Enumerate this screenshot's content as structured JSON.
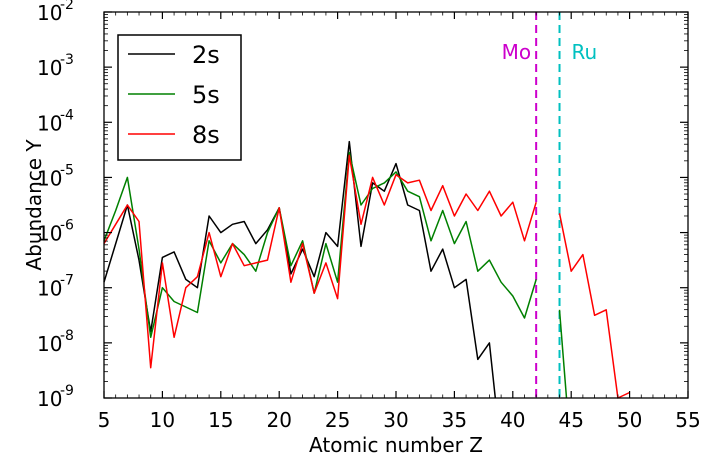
{
  "chart_data": {
    "type": "line",
    "title": "",
    "xlabel": "Atomic number Z",
    "ylabel": "Abundance Y",
    "xlim": [
      5,
      55
    ],
    "ylim_log10": [
      -9,
      -2
    ],
    "yscale": "log",
    "x_ticks": [
      5,
      10,
      15,
      20,
      25,
      30,
      35,
      40,
      45,
      50,
      55
    ],
    "y_ticks": [
      {
        "base": "10",
        "exp": "-9",
        "log10": -9
      },
      {
        "base": "10",
        "exp": "-8",
        "log10": -8
      },
      {
        "base": "10",
        "exp": "-7",
        "log10": -7
      },
      {
        "base": "10",
        "exp": "-6",
        "log10": -6
      },
      {
        "base": "10",
        "exp": "-5",
        "log10": -5
      },
      {
        "base": "10",
        "exp": "-4",
        "log10": -4
      },
      {
        "base": "10",
        "exp": "-3",
        "log10": -3
      },
      {
        "base": "10",
        "exp": "-2",
        "log10": -2
      }
    ],
    "legend_position": "top-left",
    "series": [
      {
        "name": "2s",
        "color": "#000000",
        "segments": [
          [
            [
              5,
              -6.9
            ],
            [
              6,
              -6.2
            ],
            [
              7,
              -5.5
            ],
            [
              8,
              -6.5
            ],
            [
              9,
              -7.8
            ],
            [
              10,
              -6.45
            ],
            [
              11,
              -6.35
            ],
            [
              12,
              -6.85
            ],
            [
              13,
              -7.0
            ],
            [
              14,
              -5.7
            ],
            [
              15,
              -6.0
            ],
            [
              16,
              -5.85
            ],
            [
              17,
              -5.8
            ],
            [
              18,
              -6.2
            ],
            [
              19,
              -5.95
            ],
            [
              20,
              -5.55
            ],
            [
              21,
              -6.75
            ],
            [
              22,
              -6.3
            ],
            [
              23,
              -6.8
            ],
            [
              24,
              -6.0
            ],
            [
              25,
              -6.25
            ],
            [
              26,
              -4.35
            ],
            [
              27,
              -6.25
            ],
            [
              28,
              -5.1
            ],
            [
              29,
              -5.25
            ],
            [
              30,
              -4.75
            ],
            [
              31,
              -5.5
            ],
            [
              32,
              -5.6
            ],
            [
              33,
              -6.7
            ],
            [
              34,
              -6.3
            ],
            [
              35,
              -7.0
            ],
            [
              36,
              -6.85
            ],
            [
              37,
              -8.3
            ],
            [
              38,
              -8.0
            ],
            [
              38.5,
              -9.0
            ]
          ]
        ]
      },
      {
        "name": "5s",
        "color": "#008000",
        "segments": [
          [
            [
              5,
              -6.15
            ],
            [
              6,
              -5.6
            ],
            [
              7,
              -5.0
            ],
            [
              8,
              -6.3
            ],
            [
              9,
              -7.9
            ],
            [
              10,
              -7.0
            ],
            [
              11,
              -7.25
            ],
            [
              12,
              -7.35
            ],
            [
              13,
              -7.45
            ],
            [
              14,
              -6.15
            ],
            [
              15,
              -6.55
            ],
            [
              16,
              -6.2
            ],
            [
              17,
              -6.4
            ],
            [
              18,
              -6.7
            ],
            [
              19,
              -6.0
            ],
            [
              20,
              -5.55
            ],
            [
              21,
              -6.6
            ],
            [
              22,
              -6.15
            ],
            [
              23,
              -7.1
            ],
            [
              24,
              -6.2
            ],
            [
              25,
              -6.9
            ],
            [
              26,
              -4.55
            ],
            [
              27,
              -5.5
            ],
            [
              28,
              -5.2
            ],
            [
              29,
              -5.1
            ],
            [
              30,
              -4.9
            ],
            [
              31,
              -5.25
            ],
            [
              32,
              -5.35
            ],
            [
              33,
              -6.15
            ],
            [
              34,
              -5.6
            ],
            [
              35,
              -6.2
            ],
            [
              36,
              -5.8
            ],
            [
              37,
              -6.7
            ],
            [
              38,
              -6.5
            ],
            [
              39,
              -6.9
            ],
            [
              40,
              -7.15
            ],
            [
              41,
              -7.55
            ],
            [
              42,
              -6.85
            ]
          ],
          [
            [
              44,
              -7.4
            ],
            [
              44.6,
              -9.0
            ]
          ]
        ]
      },
      {
        "name": "8s",
        "color": "#ff0000",
        "segments": [
          [
            [
              5,
              -6.2
            ],
            [
              6,
              -5.85
            ],
            [
              7,
              -5.5
            ],
            [
              8,
              -5.8
            ],
            [
              9,
              -8.45
            ],
            [
              10,
              -6.55
            ],
            [
              11,
              -7.9
            ],
            [
              12,
              -7.0
            ],
            [
              13,
              -6.8
            ],
            [
              14,
              -6.0
            ],
            [
              15,
              -6.8
            ],
            [
              16,
              -6.2
            ],
            [
              17,
              -6.6
            ],
            [
              18,
              -6.55
            ],
            [
              19,
              -6.5
            ],
            [
              20,
              -5.55
            ],
            [
              21,
              -6.9
            ],
            [
              22,
              -6.2
            ],
            [
              23,
              -7.1
            ],
            [
              24,
              -6.55
            ],
            [
              25,
              -7.2
            ],
            [
              26,
              -4.6
            ],
            [
              27,
              -5.85
            ],
            [
              28,
              -5.0
            ],
            [
              29,
              -5.5
            ],
            [
              30,
              -4.95
            ],
            [
              31,
              -5.1
            ],
            [
              32,
              -5.05
            ],
            [
              33,
              -5.6
            ],
            [
              34,
              -5.15
            ],
            [
              35,
              -5.7
            ],
            [
              36,
              -5.3
            ],
            [
              37,
              -5.6
            ],
            [
              38,
              -5.25
            ],
            [
              39,
              -5.7
            ],
            [
              40,
              -5.45
            ],
            [
              41,
              -6.15
            ],
            [
              42,
              -5.45
            ]
          ],
          [
            [
              44,
              -5.65
            ],
            [
              45,
              -6.7
            ],
            [
              46,
              -6.4
            ],
            [
              47,
              -7.5
            ],
            [
              48,
              -7.4
            ],
            [
              49,
              -9.0
            ],
            [
              50,
              -8.9
            ]
          ]
        ]
      }
    ],
    "vertical_markers": [
      {
        "label": "Mo",
        "x": 42,
        "color": "#cc00cc"
      },
      {
        "label": "Ru",
        "x": 44,
        "color": "#00c0c0"
      }
    ]
  }
}
